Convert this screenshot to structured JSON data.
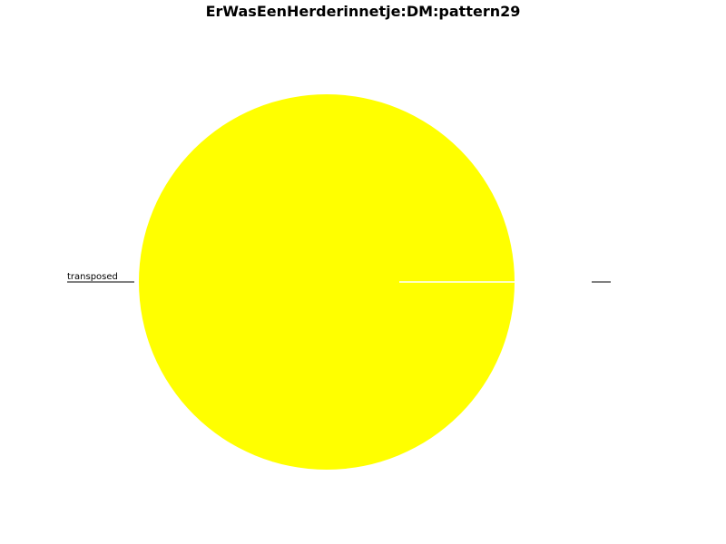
{
  "chart_data": {
    "type": "pie",
    "title": "ErWasEenHerderinnetje:DM:pattern29",
    "slices": [
      {
        "label": "",
        "value": 0,
        "color": "#ffffff"
      },
      {
        "label": "transposed",
        "value": 100,
        "color": "#ffff00"
      }
    ],
    "start_angle_deg": 0,
    "direction": "counterclockwise",
    "legend": "none"
  }
}
